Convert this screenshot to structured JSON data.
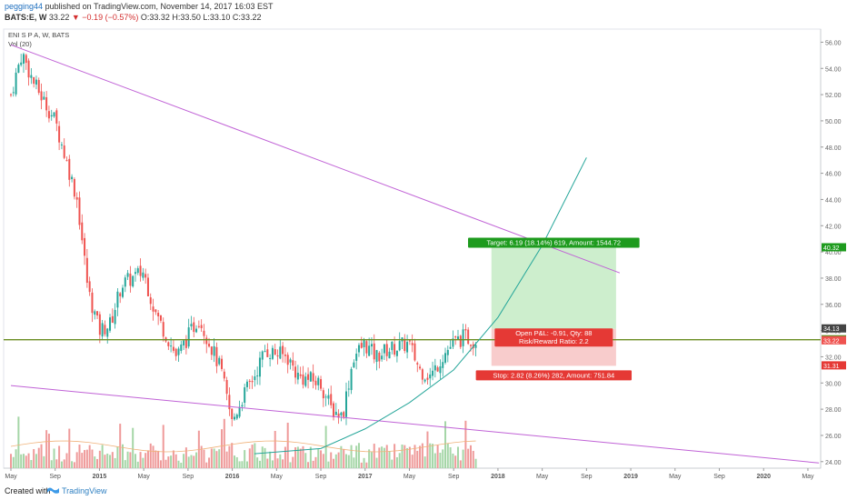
{
  "header": {
    "user": "pegging44",
    "published": "published on TradingView.com, November 14, 2017 16:03 EST",
    "symbol": "BATS:E, W",
    "last": "33.22",
    "change": "▼ −0.19 (−0.57%)",
    "ohlc": "O:33.32 H:33.50 L:33.10 C:33.22"
  },
  "footer": {
    "created": "Created with",
    "brand": "TradingView"
  },
  "chart_data": {
    "type": "candlestick",
    "legend": [
      "ENI S P A, W, BATS",
      "Vol (20)"
    ],
    "ylim": [
      23.5,
      57.0
    ],
    "y_ticks": [
      "24.00",
      "26.00",
      "28.00",
      "30.00",
      "32.00",
      "34.00",
      "36.00",
      "38.00",
      "40.00",
      "42.00",
      "44.00",
      "46.00",
      "48.00",
      "50.00",
      "52.00",
      "54.00",
      "56.00"
    ],
    "x_ticks": [
      "May",
      "Sep",
      "2015",
      "May",
      "Sep",
      "2016",
      "May",
      "Sep",
      "2017",
      "May",
      "Sep",
      "2018",
      "May",
      "Sep",
      "2019",
      "May",
      "Sep",
      "2020",
      "May"
    ],
    "price_path": [
      {
        "x": "2014-05",
        "y": 52.0
      },
      {
        "x": "2014-06",
        "y": 55.2
      },
      {
        "x": "2014-07",
        "y": 53.0
      },
      {
        "x": "2014-09",
        "y": 50.0
      },
      {
        "x": "2014-11",
        "y": 44.0
      },
      {
        "x": "2014-12",
        "y": 37.0
      },
      {
        "x": "2015-01",
        "y": 34.0
      },
      {
        "x": "2015-02",
        "y": 34.5
      },
      {
        "x": "2015-03",
        "y": 37.5
      },
      {
        "x": "2015-05",
        "y": 38.5
      },
      {
        "x": "2015-06",
        "y": 35.5
      },
      {
        "x": "2015-08",
        "y": 32.0
      },
      {
        "x": "2015-10",
        "y": 35.0
      },
      {
        "x": "2015-12",
        "y": 31.0
      },
      {
        "x": "2016-01",
        "y": 27.0
      },
      {
        "x": "2016-02",
        "y": 29.0
      },
      {
        "x": "2016-03",
        "y": 30.5
      },
      {
        "x": "2016-04",
        "y": 32.5
      },
      {
        "x": "2016-06",
        "y": 32.0
      },
      {
        "x": "2016-07",
        "y": 30.5
      },
      {
        "x": "2016-09",
        "y": 30.0
      },
      {
        "x": "2016-10",
        "y": 28.0
      },
      {
        "x": "2016-11",
        "y": 27.5
      },
      {
        "x": "2016-12",
        "y": 32.0
      },
      {
        "x": "2017-01",
        "y": 33.0
      },
      {
        "x": "2017-02",
        "y": 32.0
      },
      {
        "x": "2017-03",
        "y": 32.5
      },
      {
        "x": "2017-05",
        "y": 33.0
      },
      {
        "x": "2017-06",
        "y": 31.0
      },
      {
        "x": "2017-07",
        "y": 30.5
      },
      {
        "x": "2017-08",
        "y": 32.0
      },
      {
        "x": "2017-09",
        "y": 33.0
      },
      {
        "x": "2017-10",
        "y": 33.5
      },
      {
        "x": "2017-11",
        "y": 33.22
      }
    ],
    "trendlines": [
      {
        "color": "#c062d6",
        "from": {
          "x": "2014-05",
          "y": 55.8
        },
        "to": {
          "x": "2018-12",
          "y": 38.4
        }
      },
      {
        "color": "#c062d6",
        "from": {
          "x": "2014-05",
          "y": 29.8
        },
        "to": {
          "x": "2020-06",
          "y": 23.9
        }
      }
    ],
    "horizontal_line": {
      "y": 33.3,
      "color": "#6b8e23"
    },
    "curve": {
      "color": "#26a69a",
      "points": [
        {
          "x": "2016-03",
          "y": 24.6
        },
        {
          "x": "2016-09",
          "y": 25.0
        },
        {
          "x": "2017-01",
          "y": 26.5
        },
        {
          "x": "2017-05",
          "y": 28.5
        },
        {
          "x": "2017-09",
          "y": 31.0
        },
        {
          "x": "2018-01",
          "y": 35.0
        },
        {
          "x": "2018-05",
          "y": 40.5
        },
        {
          "x": "2018-09",
          "y": 47.2
        }
      ]
    },
    "position": {
      "x_start": "2017-12",
      "x_end": "2018-12",
      "entry": 34.13,
      "target": 40.32,
      "stop": 31.31,
      "target_label": "Target: 6.19 (18.14%) 619, Amount: 1544.72",
      "stop_label": "Stop: 2.82 (8.26%) 282, Amount: 751.84",
      "pnl_label": "Open P&L: -0.91, Qty: 88",
      "rr_label": "Risk/Reward Ratio: 2.2"
    },
    "price_badges": [
      {
        "value": "40.32",
        "y": 40.32,
        "color": "#1e9b1e"
      },
      {
        "value": "34.13",
        "y": 34.13,
        "color": "#444444"
      },
      {
        "value": "33.30",
        "y": 33.3,
        "color": "#5f8a1e"
      },
      {
        "value": "33.22",
        "y": 33.22,
        "color": "#ef5350"
      },
      {
        "value": "31.31",
        "y": 31.31,
        "color": "#e53935"
      }
    ],
    "colors": {
      "up": "#26a69a",
      "down": "#ef5350",
      "vol_up": "#a5d6a7",
      "vol_down": "#ef9a9a",
      "vol_ma": "#f0b27a"
    }
  }
}
